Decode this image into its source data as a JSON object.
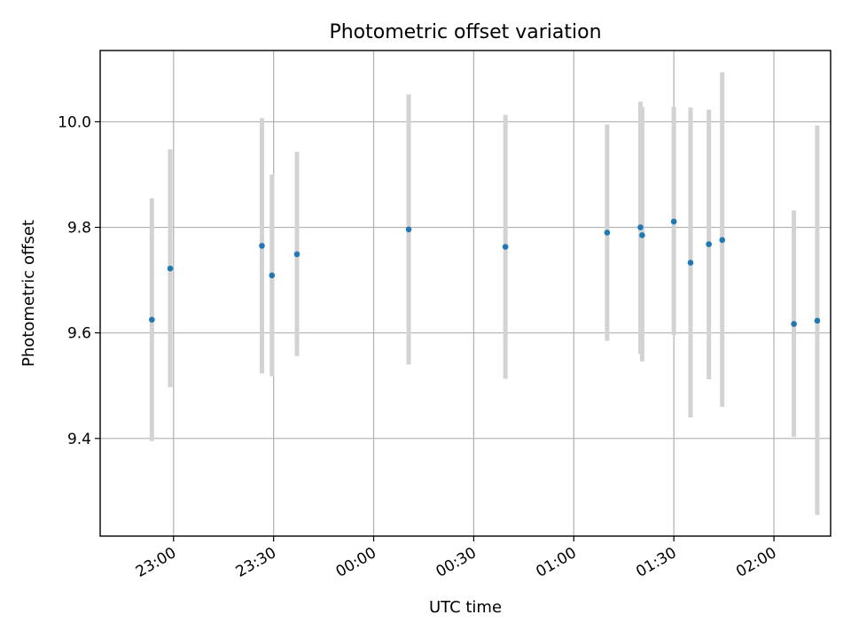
{
  "chart_data": {
    "type": "scatter",
    "title": "Photometric offset variation",
    "xlabel": "UTC time",
    "ylabel": "Photometric offset",
    "x_axis": "time",
    "xlim": [
      "22:38",
      "02:17"
    ],
    "ylim": [
      9.215,
      10.135
    ],
    "x_ticks": [
      "23:00",
      "23:30",
      "00:00",
      "00:30",
      "01:00",
      "01:30",
      "02:00"
    ],
    "y_ticks": [
      9.4,
      9.6,
      9.8,
      10.0
    ],
    "y_tick_labels": [
      "9.4",
      "9.6",
      "9.8",
      "10.0"
    ],
    "x_tick_labels_rotated": true,
    "grid": true,
    "marker_color": "#1f77b4",
    "errorbar_color": "#d3d3d3",
    "points": [
      {
        "t": "22:53:30",
        "y": 9.625,
        "lo": 9.395,
        "hi": 9.855
      },
      {
        "t": "22:59:00",
        "y": 9.722,
        "lo": 9.497,
        "hi": 9.948
      },
      {
        "t": "23:26:30",
        "y": 9.765,
        "lo": 9.523,
        "hi": 10.007
      },
      {
        "t": "23:29:30",
        "y": 9.709,
        "lo": 9.518,
        "hi": 9.9
      },
      {
        "t": "23:37:00",
        "y": 9.749,
        "lo": 9.556,
        "hi": 9.943
      },
      {
        "t": "00:10:30",
        "y": 9.796,
        "lo": 9.54,
        "hi": 10.052
      },
      {
        "t": "00:39:30",
        "y": 9.763,
        "lo": 9.513,
        "hi": 10.013
      },
      {
        "t": "01:10:00",
        "y": 9.79,
        "lo": 9.585,
        "hi": 9.995
      },
      {
        "t": "01:20:00",
        "y": 9.8,
        "lo": 9.56,
        "hi": 10.038
      },
      {
        "t": "01:20:30",
        "y": 9.785,
        "lo": 9.546,
        "hi": 10.028
      },
      {
        "t": "01:30:00",
        "y": 9.811,
        "lo": 9.596,
        "hi": 10.028
      },
      {
        "t": "01:35:00",
        "y": 9.733,
        "lo": 9.44,
        "hi": 10.027
      },
      {
        "t": "01:40:30",
        "y": 9.768,
        "lo": 9.512,
        "hi": 10.023
      },
      {
        "t": "01:44:30",
        "y": 9.776,
        "lo": 9.46,
        "hi": 10.094
      },
      {
        "t": "02:06:00",
        "y": 9.617,
        "lo": 9.403,
        "hi": 9.832
      },
      {
        "t": "02:13:00",
        "y": 9.623,
        "lo": 9.255,
        "hi": 9.993
      }
    ]
  }
}
